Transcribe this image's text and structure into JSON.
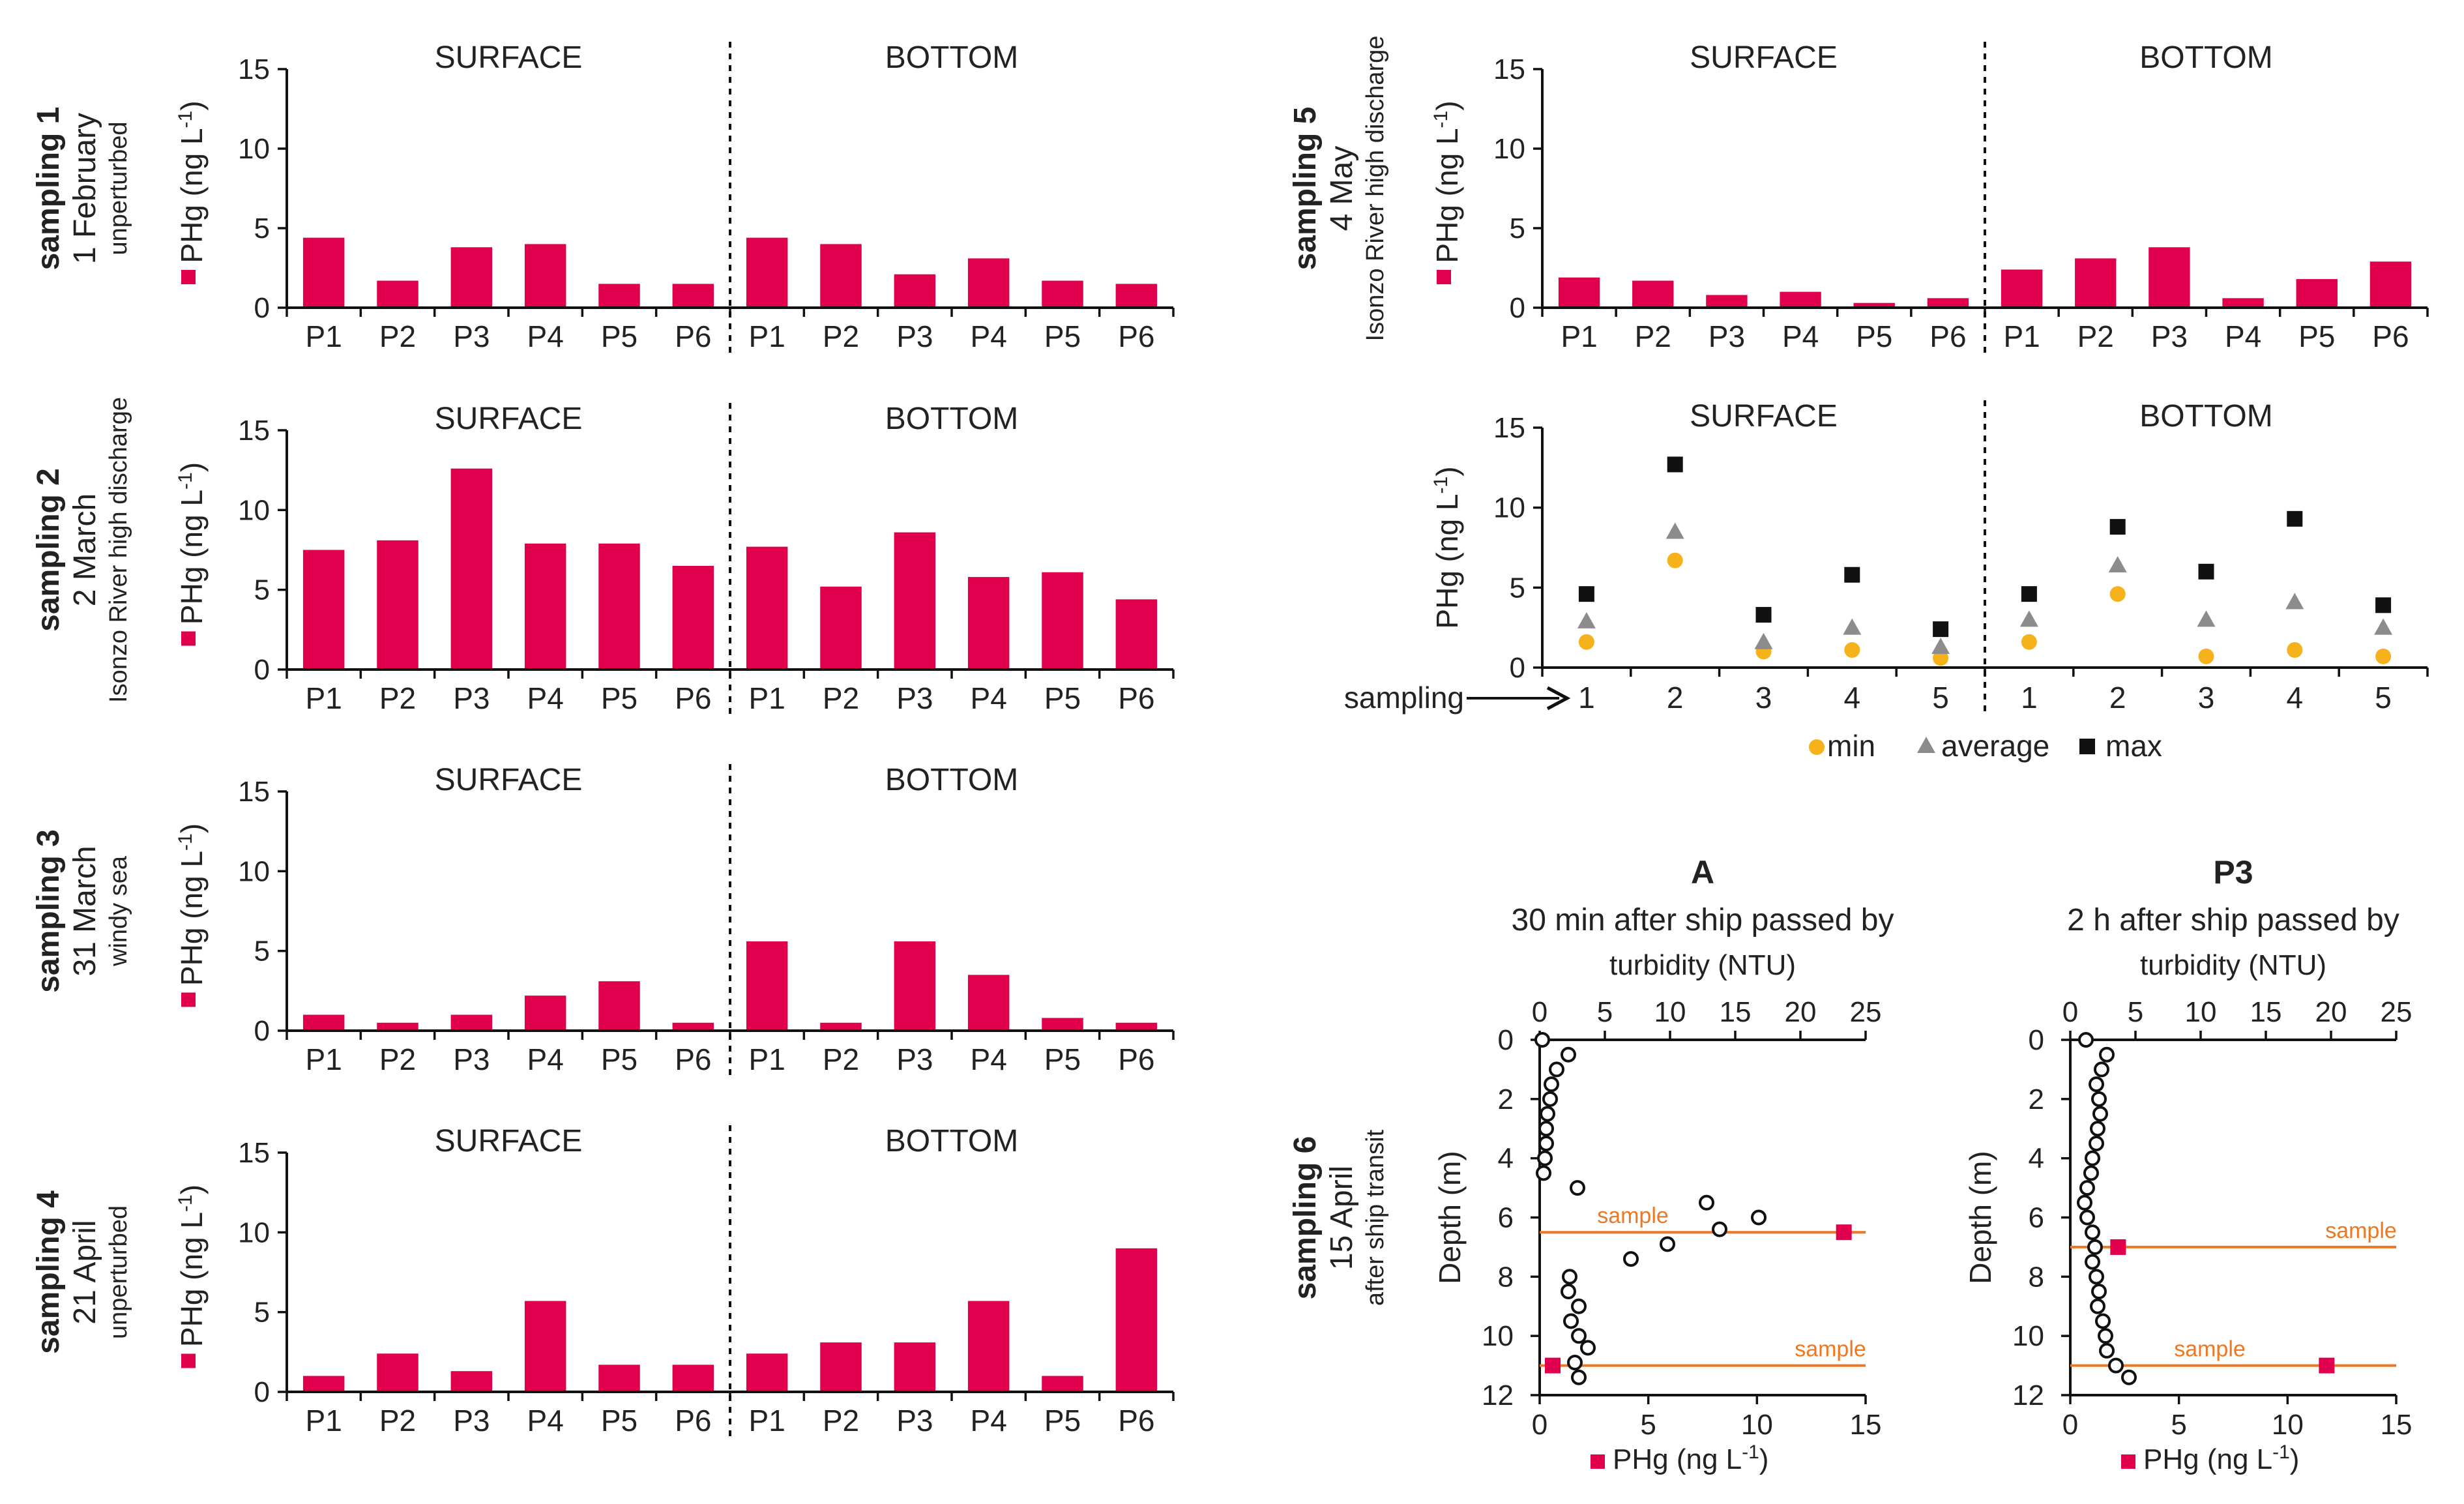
{
  "colors": {
    "bar": "#e0004d",
    "min": "#f5b21b",
    "average": "#8c8c8c",
    "max": "#111111",
    "profile_point": "#ffffff",
    "sample_line": "#ee7722"
  },
  "bar_ylabel": "PHg (ng L-1)",
  "regions": {
    "surface": "SURFACE",
    "bottom": "BOTTOM"
  },
  "chart_data": [
    {
      "type": "bar",
      "row_title": "sampling 1",
      "row_date": "1 February",
      "row_condition": "unperturbed",
      "ylabel": "PHg (ng L-1)",
      "ylim": [
        0,
        15
      ],
      "yticks": [
        "0",
        "5",
        "10",
        "15"
      ],
      "regions": [
        "SURFACE",
        "BOTTOM"
      ],
      "categories": [
        "P1",
        "P2",
        "P3",
        "P4",
        "P5",
        "P6",
        "P1",
        "P2",
        "P3",
        "P4",
        "P5",
        "P6"
      ],
      "values": [
        4.4,
        1.7,
        3.8,
        4.0,
        1.5,
        1.5,
        4.4,
        4.0,
        2.1,
        3.1,
        1.7,
        1.5
      ]
    },
    {
      "type": "bar",
      "row_title": "sampling 2",
      "row_date": "2 March",
      "row_condition": "Isonzo River high discharge",
      "ylabel": "PHg (ng L-1)",
      "ylim": [
        0,
        15
      ],
      "yticks": [
        "0",
        "5",
        "10",
        "15"
      ],
      "regions": [
        "SURFACE",
        "BOTTOM"
      ],
      "categories": [
        "P1",
        "P2",
        "P3",
        "P4",
        "P5",
        "P6",
        "P1",
        "P2",
        "P3",
        "P4",
        "P5",
        "P6"
      ],
      "values": [
        7.5,
        8.1,
        12.6,
        7.9,
        7.9,
        6.5,
        7.7,
        5.2,
        8.6,
        5.8,
        6.1,
        4.4
      ]
    },
    {
      "type": "bar",
      "row_title": "sampling 3",
      "row_date": "31 March",
      "row_condition": "windy sea",
      "ylabel": "PHg (ng L-1)",
      "ylim": [
        0,
        15
      ],
      "yticks": [
        "0",
        "5",
        "10",
        "15"
      ],
      "regions": [
        "SURFACE",
        "BOTTOM"
      ],
      "categories": [
        "P1",
        "P2",
        "P3",
        "P4",
        "P5",
        "P6",
        "P1",
        "P2",
        "P3",
        "P4",
        "P5",
        "P6"
      ],
      "values": [
        1.0,
        0.5,
        1.0,
        2.2,
        3.1,
        0.5,
        5.6,
        0.5,
        5.6,
        3.5,
        0.8,
        0.5
      ]
    },
    {
      "type": "bar",
      "row_title": "sampling 4",
      "row_date": "21 April",
      "row_condition": "unperturbed",
      "ylabel": "PHg (ng L-1)",
      "ylim": [
        0,
        15
      ],
      "yticks": [
        "0",
        "5",
        "10",
        "15"
      ],
      "regions": [
        "SURFACE",
        "BOTTOM"
      ],
      "categories": [
        "P1",
        "P2",
        "P3",
        "P4",
        "P5",
        "P6",
        "P1",
        "P2",
        "P3",
        "P4",
        "P5",
        "P6"
      ],
      "values": [
        1.0,
        2.4,
        1.3,
        5.7,
        1.7,
        1.7,
        2.4,
        3.1,
        3.1,
        5.7,
        1.0,
        9.0
      ]
    },
    {
      "type": "bar",
      "row_title": "sampling 5",
      "row_date": "4 May",
      "row_condition": "Isonzo River high discharge",
      "ylabel": "PHg (ng L-1)",
      "ylim": [
        0,
        15
      ],
      "yticks": [
        "0",
        "5",
        "10",
        "15"
      ],
      "regions": [
        "SURFACE",
        "BOTTOM"
      ],
      "categories": [
        "P1",
        "P2",
        "P3",
        "P4",
        "P5",
        "P6",
        "P1",
        "P2",
        "P3",
        "P4",
        "P5",
        "P6"
      ],
      "values": [
        1.9,
        1.7,
        0.8,
        1.0,
        0.3,
        0.6,
        2.4,
        3.1,
        3.8,
        0.6,
        1.8,
        2.9
      ]
    },
    {
      "type": "scatter",
      "ylabel": "PHg (ng L-1)",
      "ylim": [
        0,
        15
      ],
      "yticks": [
        "0",
        "5",
        "10",
        "15"
      ],
      "regions": [
        "SURFACE",
        "BOTTOM"
      ],
      "xlabel": "sampling",
      "categories": [
        "1",
        "2",
        "3",
        "4",
        "5",
        "1",
        "2",
        "3",
        "4",
        "5"
      ],
      "legend": [
        "min",
        "average",
        "max"
      ],
      "series": [
        {
          "name": "min",
          "values": [
            1.6,
            6.7,
            1.0,
            1.1,
            0.6,
            1.6,
            4.6,
            0.7,
            1.1,
            0.7
          ]
        },
        {
          "name": "average",
          "values": [
            2.9,
            8.5,
            1.6,
            2.5,
            1.3,
            3.0,
            6.4,
            3.0,
            4.1,
            2.5
          ]
        },
        {
          "name": "max",
          "values": [
            4.6,
            12.7,
            3.3,
            5.8,
            2.4,
            4.6,
            8.8,
            6.0,
            9.3,
            3.9
          ]
        }
      ]
    },
    {
      "type": "profile",
      "row_title": "sampling 6",
      "row_date": "15 April",
      "row_condition": "after ship transit",
      "panel": "A",
      "subtitle": "30 min after ship passed by",
      "top_axis_label": "turbidity (NTU)",
      "top_ticks": [
        "0",
        "5",
        "10",
        "15",
        "20",
        "25"
      ],
      "top_range": [
        0,
        25
      ],
      "ylabel": "Depth (m)",
      "ylim": [
        0,
        12
      ],
      "yticks": [
        "0",
        "2",
        "4",
        "6",
        "8",
        "10",
        "12"
      ],
      "bottom_axis_label": "PHg (ng L-1)",
      "bottom_ticks": [
        "0",
        "5",
        "10",
        "15"
      ],
      "bottom_range": [
        0,
        15
      ],
      "sample_label": "sample",
      "sample_depths": [
        6.5,
        11.0
      ],
      "phg_points": [
        {
          "depth": 6.5,
          "value": 14.0
        },
        {
          "depth": 11.0,
          "value": 0.6
        }
      ],
      "turbidity_profile": [
        {
          "depth": 0.0,
          "ntu": 0.2
        },
        {
          "depth": 0.5,
          "ntu": 2.2
        },
        {
          "depth": 1.0,
          "ntu": 1.3
        },
        {
          "depth": 1.5,
          "ntu": 0.9
        },
        {
          "depth": 2.0,
          "ntu": 0.8
        },
        {
          "depth": 2.5,
          "ntu": 0.6
        },
        {
          "depth": 3.0,
          "ntu": 0.5
        },
        {
          "depth": 3.5,
          "ntu": 0.5
        },
        {
          "depth": 4.0,
          "ntu": 0.4
        },
        {
          "depth": 4.5,
          "ntu": 0.3
        },
        {
          "depth": 5.0,
          "ntu": 2.9
        },
        {
          "depth": 5.5,
          "ntu": 12.8
        },
        {
          "depth": 6.0,
          "ntu": 16.8
        },
        {
          "depth": 6.4,
          "ntu": 13.8
        },
        {
          "depth": 6.9,
          "ntu": 9.8
        },
        {
          "depth": 7.4,
          "ntu": 7.0
        },
        {
          "depth": 8.0,
          "ntu": 2.3
        },
        {
          "depth": 8.5,
          "ntu": 2.2
        },
        {
          "depth": 9.0,
          "ntu": 3.0
        },
        {
          "depth": 9.5,
          "ntu": 2.4
        },
        {
          "depth": 10.0,
          "ntu": 3.0
        },
        {
          "depth": 10.4,
          "ntu": 3.7
        },
        {
          "depth": 10.9,
          "ntu": 2.7
        },
        {
          "depth": 11.4,
          "ntu": 3.0
        }
      ]
    },
    {
      "type": "profile",
      "panel": "P3",
      "subtitle": "2 h after ship passed by",
      "top_axis_label": "turbidity (NTU)",
      "top_ticks": [
        "0",
        "5",
        "10",
        "15",
        "20",
        "25"
      ],
      "top_range": [
        0,
        25
      ],
      "ylabel": "Depth (m)",
      "ylim": [
        0,
        12
      ],
      "yticks": [
        "0",
        "2",
        "4",
        "6",
        "8",
        "10",
        "12"
      ],
      "bottom_axis_label": "PHg (ng L-1)",
      "bottom_ticks": [
        "0",
        "5",
        "10",
        "15"
      ],
      "bottom_range": [
        0,
        15
      ],
      "sample_label": "sample",
      "sample_depths": [
        7.0,
        11.0
      ],
      "phg_points": [
        {
          "depth": 7.0,
          "value": 2.2
        },
        {
          "depth": 11.0,
          "value": 11.8
        }
      ],
      "turbidity_profile": [
        {
          "depth": 0.0,
          "ntu": 1.2
        },
        {
          "depth": 0.5,
          "ntu": 2.8
        },
        {
          "depth": 1.0,
          "ntu": 2.4
        },
        {
          "depth": 1.5,
          "ntu": 2.0
        },
        {
          "depth": 2.0,
          "ntu": 2.2
        },
        {
          "depth": 2.5,
          "ntu": 2.3
        },
        {
          "depth": 3.0,
          "ntu": 2.1
        },
        {
          "depth": 3.5,
          "ntu": 2.0
        },
        {
          "depth": 4.0,
          "ntu": 1.7
        },
        {
          "depth": 4.5,
          "ntu": 1.6
        },
        {
          "depth": 5.0,
          "ntu": 1.3
        },
        {
          "depth": 5.5,
          "ntu": 1.1
        },
        {
          "depth": 6.0,
          "ntu": 1.3
        },
        {
          "depth": 6.5,
          "ntu": 1.7
        },
        {
          "depth": 7.0,
          "ntu": 1.9
        },
        {
          "depth": 7.5,
          "ntu": 1.7
        },
        {
          "depth": 8.0,
          "ntu": 2.0
        },
        {
          "depth": 8.5,
          "ntu": 2.2
        },
        {
          "depth": 9.0,
          "ntu": 2.1
        },
        {
          "depth": 9.5,
          "ntu": 2.5
        },
        {
          "depth": 10.0,
          "ntu": 2.7
        },
        {
          "depth": 10.5,
          "ntu": 2.8
        },
        {
          "depth": 11.0,
          "ntu": 3.5
        },
        {
          "depth": 11.4,
          "ntu": 4.5
        }
      ]
    }
  ]
}
